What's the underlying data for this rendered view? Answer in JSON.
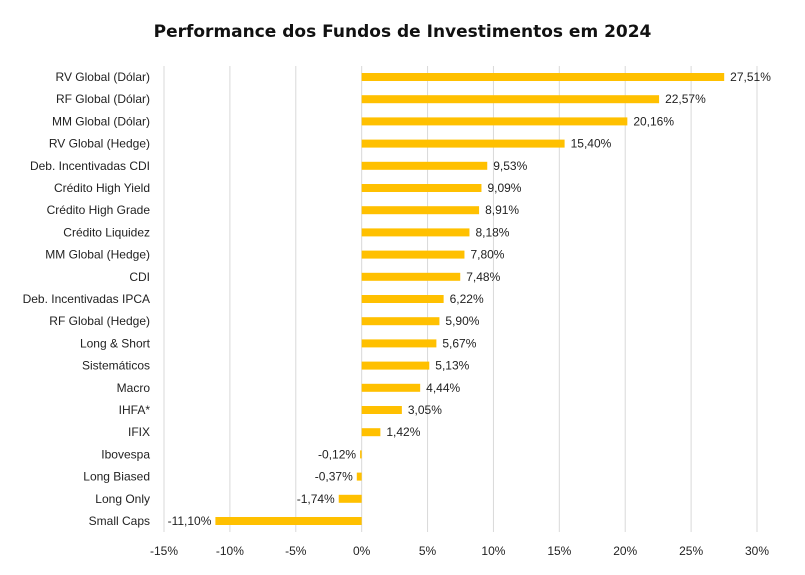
{
  "chart_data": {
    "type": "bar",
    "orientation": "horizontal",
    "title": "Performance dos Fundos de Investimentos em 2024",
    "categories": [
      "RV Global (Dólar)",
      "RF Global (Dólar)",
      "MM Global (Dólar)",
      "RV Global (Hedge)",
      "Deb. Incentivadas CDI",
      "Crédito High Yield",
      "Crédito High Grade",
      "Crédito Liquidez",
      "MM Global (Hedge)",
      "CDI",
      "Deb. Incentivadas IPCA",
      "RF Global (Hedge)",
      "Long & Short",
      "Sistemáticos",
      "Macro",
      "IHFA*",
      "IFIX",
      "Ibovespa",
      "Long Biased",
      "Long Only",
      "Small Caps"
    ],
    "values": [
      27.51,
      22.57,
      20.16,
      15.4,
      9.53,
      9.09,
      8.91,
      8.18,
      7.8,
      7.48,
      6.22,
      5.9,
      5.67,
      5.13,
      4.44,
      3.05,
      1.42,
      -0.12,
      -0.37,
      -1.74,
      -11.1
    ],
    "value_labels": [
      "27,51%",
      "22,57%",
      "20,16%",
      "15,40%",
      "9,53%",
      "9,09%",
      "8,91%",
      "8,18%",
      "7,80%",
      "7,48%",
      "6,22%",
      "5,90%",
      "5,67%",
      "5,13%",
      "4,44%",
      "3,05%",
      "1,42%",
      "-0,12%",
      "-0,37%",
      "-1,74%",
      "-11,10%"
    ],
    "x_ticks": [
      -15,
      -10,
      -5,
      0,
      5,
      10,
      15,
      20,
      25,
      30
    ],
    "x_tick_labels": [
      "-15%",
      "-10%",
      "-5%",
      "0%",
      "5%",
      "10%",
      "15%",
      "20%",
      "25%",
      "30%"
    ],
    "xlim": [
      -15,
      30
    ],
    "grid": "vertical",
    "legend": "none",
    "bar_color": "#FFC000",
    "grid_color": "#D9D9D9"
  }
}
